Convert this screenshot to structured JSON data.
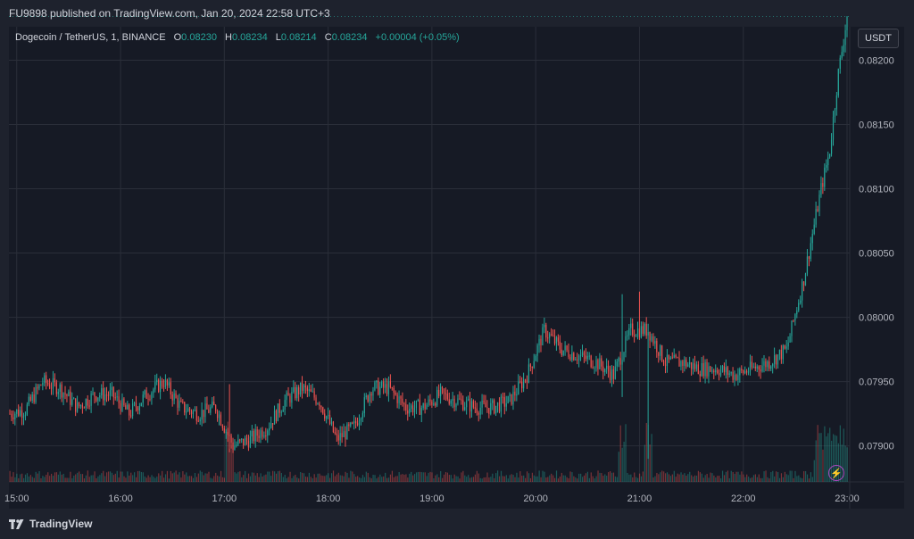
{
  "header": {
    "publish_line": "FU9898 published on TradingView.com, Jan 20, 2024 22:58 UTC+3"
  },
  "legend": {
    "symbol": "Dogecoin / TetherUS, 1, BINANCE",
    "o_label": "O",
    "o_value": "0.08230",
    "h_label": "H",
    "h_value": "0.08234",
    "l_label": "L",
    "l_value": "0.08214",
    "c_label": "C",
    "c_value": "0.08234",
    "change": "+0.00004 (+0.05%)"
  },
  "currency_button": "USDT",
  "footer": {
    "brand": "TradingView"
  },
  "chart_data": {
    "type": "candlestick",
    "symbol": "Dogecoin / TetherUS",
    "interval": "1",
    "exchange": "BINANCE",
    "quote": "USDT",
    "x_tick_labels": [
      "15:00",
      "16:00",
      "17:00",
      "18:00",
      "19:00",
      "20:00",
      "21:00",
      "22:00",
      "23:00"
    ],
    "y_tick_labels": [
      "0.08200",
      "0.08150",
      "0.08100",
      "0.08050",
      "0.08000",
      "0.07950",
      "0.07900"
    ],
    "y_ticks": [
      0.082,
      0.0815,
      0.081,
      0.0805,
      0.08,
      0.0795,
      0.079
    ],
    "ylim": [
      0.07872,
      0.08226
    ],
    "time_range": [
      "14:56",
      "23:00"
    ],
    "close_anchors": [
      [
        "14:56",
        0.07925
      ],
      [
        "15:05",
        0.07928
      ],
      [
        "15:15",
        0.0795
      ],
      [
        "15:25",
        0.07945
      ],
      [
        "15:35",
        0.0793
      ],
      [
        "15:45",
        0.0794
      ],
      [
        "15:55",
        0.0794
      ],
      [
        "16:05",
        0.07925
      ],
      [
        "16:15",
        0.0794
      ],
      [
        "16:25",
        0.0795
      ],
      [
        "16:35",
        0.0793
      ],
      [
        "16:45",
        0.07925
      ],
      [
        "16:55",
        0.0793
      ],
      [
        "17:05",
        0.079
      ],
      [
        "17:15",
        0.07905
      ],
      [
        "17:25",
        0.07915
      ],
      [
        "17:35",
        0.07935
      ],
      [
        "17:45",
        0.07945
      ],
      [
        "17:55",
        0.07935
      ],
      [
        "18:05",
        0.07905
      ],
      [
        "18:15",
        0.07915
      ],
      [
        "18:25",
        0.07945
      ],
      [
        "18:35",
        0.07945
      ],
      [
        "18:45",
        0.0793
      ],
      [
        "18:55",
        0.0793
      ],
      [
        "19:05",
        0.0794
      ],
      [
        "19:15",
        0.07935
      ],
      [
        "19:25",
        0.0793
      ],
      [
        "19:35",
        0.0793
      ],
      [
        "19:45",
        0.07935
      ],
      [
        "19:55",
        0.07955
      ],
      [
        "20:05",
        0.0799
      ],
      [
        "20:15",
        0.07975
      ],
      [
        "20:25",
        0.0797
      ],
      [
        "20:35",
        0.07965
      ],
      [
        "20:45",
        0.07955
      ],
      [
        "20:55",
        0.0799
      ],
      [
        "21:05",
        0.0799
      ],
      [
        "21:15",
        0.07965
      ],
      [
        "21:25",
        0.07965
      ],
      [
        "21:35",
        0.0796
      ],
      [
        "21:45",
        0.0796
      ],
      [
        "21:55",
        0.07955
      ],
      [
        "22:05",
        0.0796
      ],
      [
        "22:15",
        0.07965
      ],
      [
        "22:25",
        0.07975
      ],
      [
        "22:35",
        0.0803
      ],
      [
        "22:45",
        0.081
      ],
      [
        "22:50",
        0.0813
      ],
      [
        "22:55",
        0.0819
      ],
      [
        "23:00",
        0.08234
      ]
    ],
    "spikes": [
      [
        "17:03",
        0.07895,
        0.07948
      ],
      [
        "20:50",
        0.07938,
        0.08018
      ],
      [
        "21:00",
        0.07985,
        0.0802
      ],
      [
        "21:05",
        0.0789,
        0.07995
      ]
    ],
    "volume_spikes_approx": [
      "17:03",
      "20:50",
      "21:05",
      "22:45",
      "22:50",
      "22:55"
    ],
    "colors": {
      "up": "#26a69a",
      "down": "#ef5350",
      "grid": "#2a2e39",
      "text": "#b2b5be"
    }
  }
}
